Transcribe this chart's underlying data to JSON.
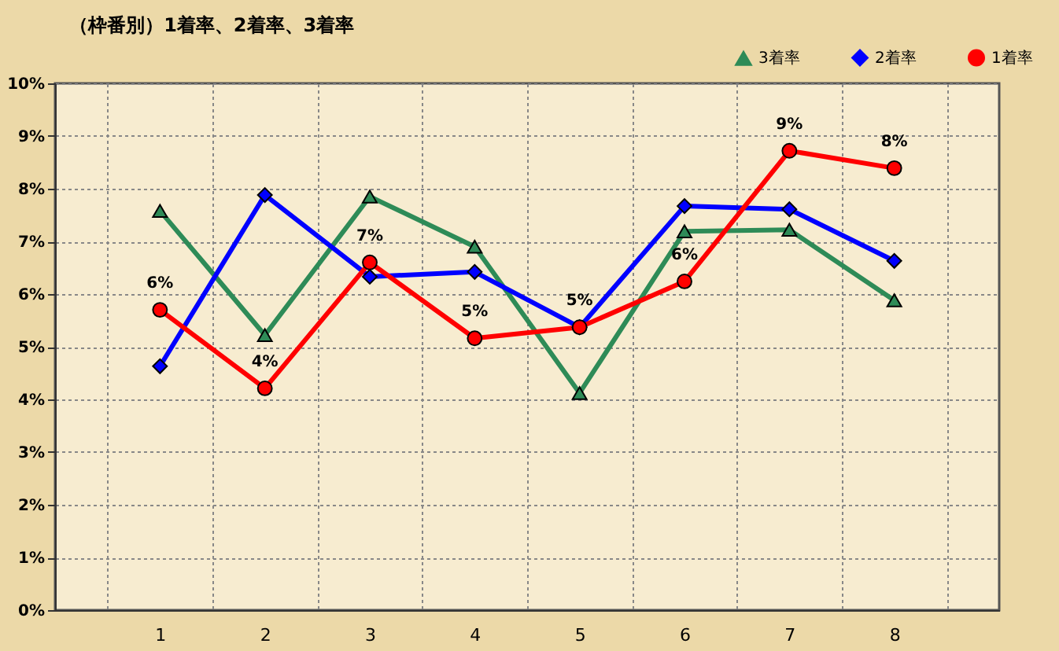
{
  "chart_data": {
    "type": "line",
    "title": "（枠番別）1着率、2着率、3着率",
    "categories": [
      "1",
      "2",
      "3",
      "4",
      "5",
      "6",
      "7",
      "8"
    ],
    "series": [
      {
        "name": "3着率",
        "color": "#2e8b57",
        "marker": "triangle",
        "values": [
          7.58,
          5.22,
          7.85,
          6.9,
          4.12,
          7.19,
          7.22,
          5.88
        ]
      },
      {
        "name": "2着率",
        "color": "#0000ff",
        "marker": "diamond",
        "values": [
          4.63,
          7.88,
          6.33,
          6.42,
          5.37,
          7.67,
          7.61,
          6.63
        ]
      },
      {
        "name": "1着率",
        "color": "#ff0000",
        "marker": "circle",
        "values": [
          5.7,
          4.21,
          6.6,
          5.16,
          5.37,
          6.24,
          8.72,
          8.39
        ],
        "value_labels": [
          "6%",
          "4%",
          "7%",
          "5%",
          "5%",
          "6%",
          "9%",
          "8%"
        ]
      }
    ],
    "ylim": [
      0,
      10
    ],
    "yticks": [
      {
        "value": 0,
        "label": "0%"
      },
      {
        "value": 1,
        "label": "1%"
      },
      {
        "value": 2,
        "label": "2%"
      },
      {
        "value": 3,
        "label": "3%"
      },
      {
        "value": 4,
        "label": "4%"
      },
      {
        "value": 5,
        "label": "5%"
      },
      {
        "value": 6,
        "label": "6%"
      },
      {
        "value": 7,
        "label": "7%"
      },
      {
        "value": 8,
        "label": "8%"
      },
      {
        "value": 9,
        "label": "9%"
      },
      {
        "value": 10,
        "label": "10%"
      }
    ],
    "grid": true,
    "legend": "top right",
    "line_style": "solid"
  }
}
